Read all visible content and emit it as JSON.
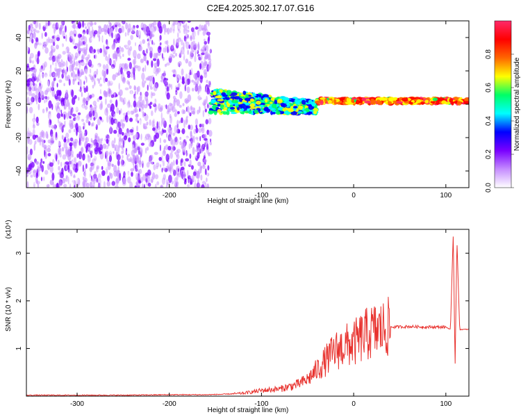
{
  "title": "C2E4.2025.302.17.07.G16",
  "chart_data": [
    {
      "type": "heatmap",
      "xlabel": "Height of straight line (km)",
      "ylabel": "Frequency (Hz)",
      "xlim": [
        -355,
        125
      ],
      "ylim": [
        -50,
        50
      ],
      "x_ticks": [
        -300,
        -200,
        -100,
        0,
        100
      ],
      "y_ticks": [
        -40,
        -20,
        0,
        20,
        40
      ],
      "colorbar": {
        "label": "Normalized spectral amplitude",
        "range": [
          0,
          1
        ],
        "ticks": [
          0.0,
          0.2,
          0.4,
          0.6,
          0.8
        ],
        "colors": [
          "#ffffff",
          "#c58cff",
          "#7a00ff",
          "#0000ff",
          "#00ffff",
          "#00ff66",
          "#ffff00",
          "#ff6600",
          "#ff0000",
          "#ff2a6a"
        ]
      },
      "regions": [
        {
          "x_range": [
            -355,
            -155
          ],
          "freq_range": [
            -50,
            50
          ],
          "amplitude": [
            0.05,
            0.25
          ],
          "description_key": "noise"
        },
        {
          "x_range": [
            -155,
            -40
          ],
          "freq_center": 2,
          "freq_width": 12,
          "amplitude": [
            0.3,
            0.7
          ]
        },
        {
          "x_range": [
            -40,
            125
          ],
          "freq_center": 2,
          "freq_width": 3,
          "amplitude": [
            0.6,
            1.0
          ]
        }
      ],
      "grid": false
    },
    {
      "type": "line",
      "xlabel": "Height of straight line (km)",
      "ylabel": "SNR (10 * v/v)",
      "y_multiplier": "(x10⁴)",
      "xlim": [
        -355,
        125
      ],
      "ylim": [
        0,
        3.5
      ],
      "x_ticks": [
        -300,
        -200,
        -100,
        0,
        100
      ],
      "y_ticks": [
        1,
        2,
        3
      ],
      "series_color": "#e8322e",
      "x": [
        -355,
        -300,
        -250,
        -200,
        -160,
        -140,
        -120,
        -100,
        -80,
        -60,
        -50,
        -40,
        -30,
        -20,
        -10,
        0,
        10,
        20,
        30,
        40,
        60,
        80,
        100,
        105,
        108,
        110,
        112,
        115,
        120,
        125
      ],
      "y": [
        0.02,
        0.02,
        0.02,
        0.03,
        0.03,
        0.04,
        0.06,
        0.12,
        0.15,
        0.25,
        0.35,
        0.55,
        0.75,
        0.95,
        1.05,
        1.1,
        1.25,
        1.35,
        1.4,
        1.45,
        1.46,
        1.45,
        1.45,
        1.4,
        3.4,
        0.6,
        3.3,
        1.4,
        1.4,
        1.4
      ],
      "grid": false
    }
  ]
}
